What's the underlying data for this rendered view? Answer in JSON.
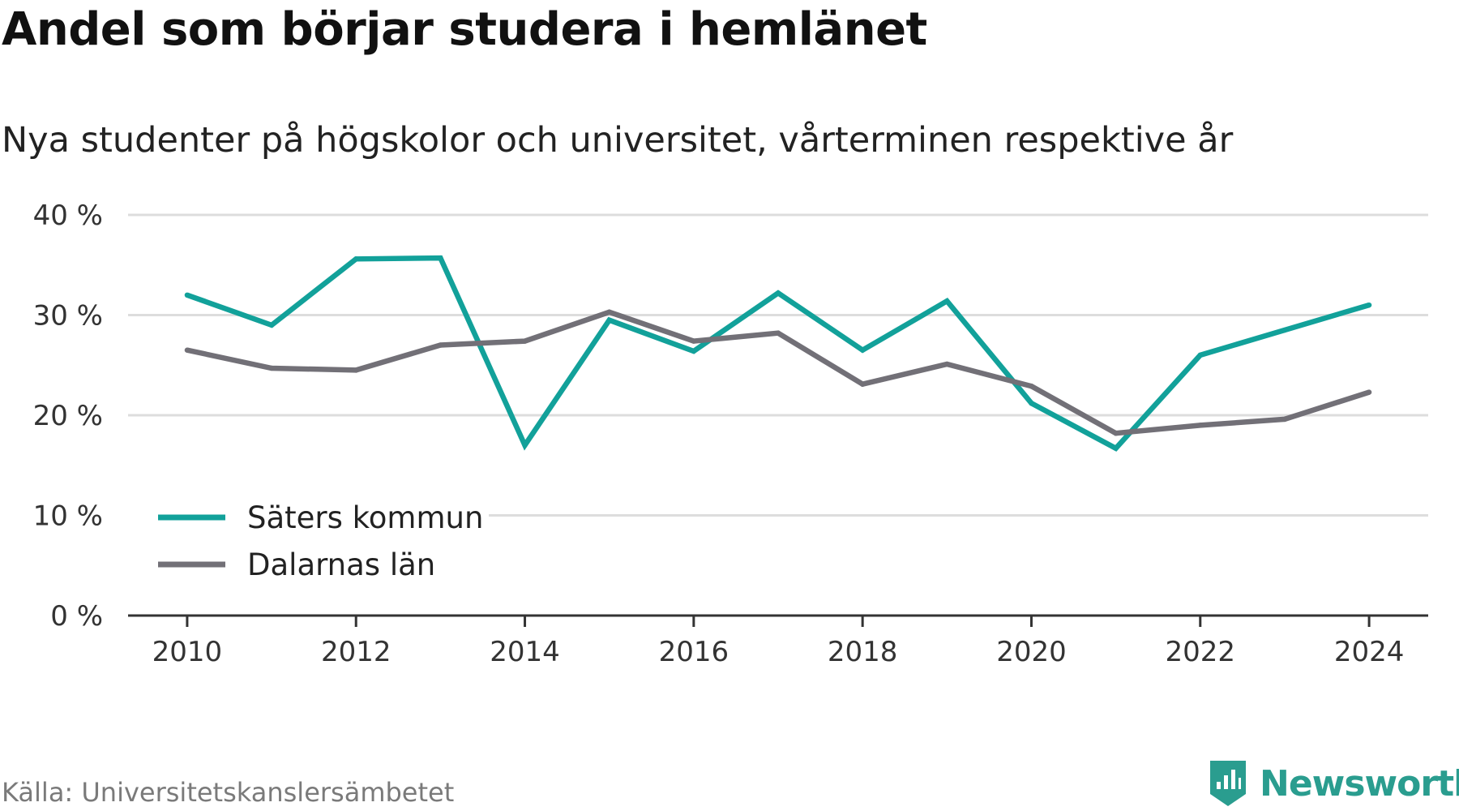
{
  "title": "Andel som börjar studera i hemlänet",
  "subtitle": "Nya studenter på högskolor och universitet, vårterminen respektive år",
  "source": "Källa: Universitetskanslersämbetet",
  "brand": {
    "name": "Newsworthy",
    "logo_icon": "newsworthy-logo-icon",
    "color": "#2a9d8f"
  },
  "colors": {
    "grid": "#dddddd",
    "axis": "#333333",
    "tick_text": "#333333"
  },
  "chart_data": {
    "type": "line",
    "title": "Andel som börjar studera i hemlänet",
    "subtitle": "Nya studenter på högskolor och universitet, vårterminen respektive år",
    "xlabel": "",
    "ylabel": "",
    "x": [
      2010,
      2011,
      2012,
      2013,
      2014,
      2015,
      2016,
      2017,
      2018,
      2019,
      2020,
      2021,
      2022,
      2023,
      2024
    ],
    "xticks": [
      "2010",
      "2012",
      "2014",
      "2016",
      "2018",
      "2020",
      "2022",
      "2024"
    ],
    "xlim": [
      2009.3,
      2024.7
    ],
    "yticks": [
      "0 %",
      "10 %",
      "20 %",
      "30 %",
      "40 %"
    ],
    "ylim": [
      0,
      40
    ],
    "grid": true,
    "legend_position": "bottom-left",
    "series": [
      {
        "name": "Säters kommun",
        "color": "#12a19a",
        "values": [
          32.0,
          29.0,
          35.6,
          35.7,
          17.0,
          29.5,
          26.4,
          32.2,
          26.5,
          31.4,
          21.2,
          16.7,
          26.0,
          28.5,
          31.0
        ]
      },
      {
        "name": "Dalarnas län",
        "color": "#727077",
        "values": [
          26.5,
          24.7,
          24.5,
          27.0,
          27.4,
          30.3,
          27.4,
          28.2,
          23.1,
          25.1,
          22.9,
          18.2,
          19.0,
          19.6,
          22.3
        ]
      }
    ]
  }
}
